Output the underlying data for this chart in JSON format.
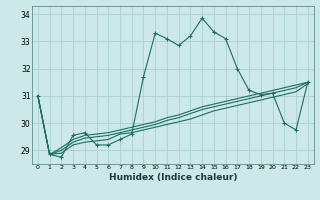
{
  "xlabel": "Humidex (Indice chaleur)",
  "background_color": "#cde8e8",
  "grid_color": "#aacfcf",
  "line_color": "#1a6e65",
  "xlim": [
    -0.5,
    23.5
  ],
  "ylim": [
    28.5,
    34.3
  ],
  "xticks": [
    0,
    1,
    2,
    3,
    4,
    5,
    6,
    7,
    8,
    9,
    10,
    11,
    12,
    13,
    14,
    15,
    16,
    17,
    18,
    19,
    20,
    21,
    22,
    23
  ],
  "yticks": [
    29,
    30,
    31,
    32,
    33,
    34
  ],
  "series": [
    [
      31.0,
      28.85,
      28.75,
      29.55,
      29.65,
      29.2,
      29.2,
      29.4,
      29.6,
      31.7,
      33.3,
      33.1,
      32.85,
      33.2,
      33.85,
      33.35,
      33.1,
      32.0,
      31.2,
      31.05,
      31.1,
      30.0,
      29.75,
      31.5
    ],
    [
      31.0,
      28.85,
      28.9,
      29.2,
      29.3,
      29.35,
      29.4,
      29.6,
      29.65,
      29.75,
      29.85,
      29.95,
      30.05,
      30.15,
      30.3,
      30.45,
      30.55,
      30.65,
      30.75,
      30.85,
      30.95,
      31.05,
      31.15,
      31.45
    ],
    [
      31.0,
      28.85,
      29.0,
      29.3,
      29.45,
      29.5,
      29.55,
      29.65,
      29.75,
      29.85,
      29.95,
      30.1,
      30.2,
      30.35,
      30.5,
      30.6,
      30.7,
      30.8,
      30.9,
      31.0,
      31.1,
      31.2,
      31.3,
      31.5
    ],
    [
      31.0,
      28.85,
      29.1,
      29.4,
      29.55,
      29.6,
      29.65,
      29.75,
      29.85,
      29.95,
      30.05,
      30.2,
      30.3,
      30.45,
      30.6,
      30.7,
      30.8,
      30.9,
      31.0,
      31.1,
      31.2,
      31.3,
      31.4,
      31.5
    ]
  ]
}
